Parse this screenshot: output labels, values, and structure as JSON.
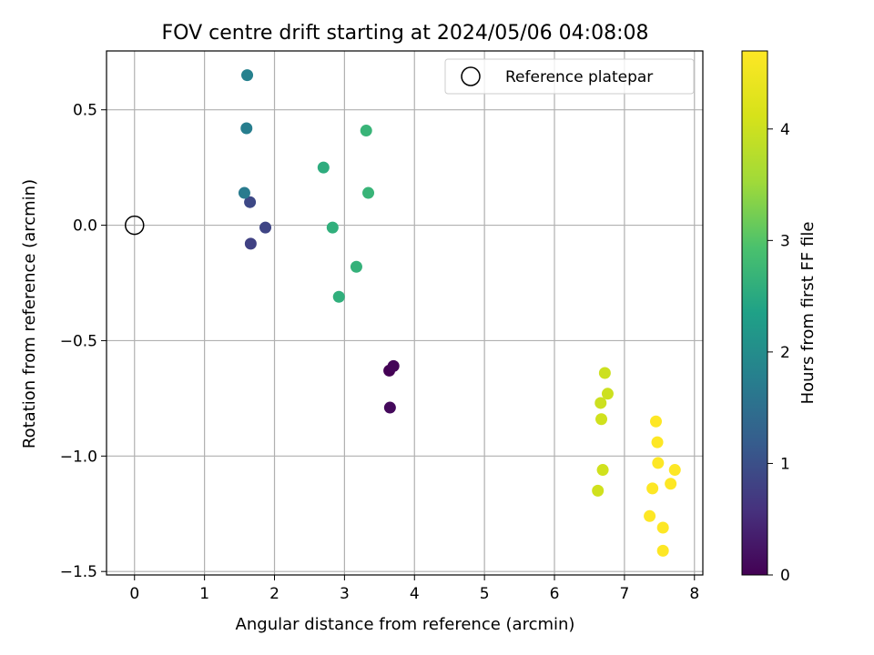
{
  "chart_data": {
    "type": "scatter",
    "title": "FOV centre drift starting at 2024/05/06 04:08:08",
    "xlabel": "Angular distance from reference (arcmin)",
    "ylabel": "Rotation from reference (arcmin)",
    "xlim": [
      -0.4,
      8.12
    ],
    "ylim": [
      -1.515,
      0.755
    ],
    "x_ticks": [
      0,
      1,
      2,
      3,
      4,
      5,
      6,
      7,
      8
    ],
    "x_tick_labels": [
      "0",
      "1",
      "2",
      "3",
      "4",
      "5",
      "6",
      "7",
      "8"
    ],
    "y_ticks": [
      0.5,
      0.0,
      -0.5,
      -1.0,
      -1.5
    ],
    "y_tick_labels": [
      "0.5",
      "0.0",
      "−0.5",
      "−1.0",
      "−1.5"
    ],
    "grid": true,
    "legend": {
      "placement": "top-right",
      "entries": [
        {
          "label": "Reference platepar",
          "marker": "open-circle"
        }
      ]
    },
    "reference_point": {
      "x": 0.0,
      "y": 0.0
    },
    "colorbar": {
      "label": "Hours from first FF file",
      "colormap": "viridis",
      "range": [
        0,
        4.7
      ],
      "ticks": [
        0,
        1,
        2,
        3,
        4
      ],
      "tick_labels": [
        "0",
        "1",
        "2",
        "3",
        "4"
      ]
    },
    "points": [
      {
        "x": 3.64,
        "y": -0.63,
        "hours": 0.0
      },
      {
        "x": 3.7,
        "y": -0.61,
        "hours": 0.05
      },
      {
        "x": 3.65,
        "y": -0.79,
        "hours": 0.1
      },
      {
        "x": 1.66,
        "y": -0.08,
        "hours": 0.8
      },
      {
        "x": 1.87,
        "y": -0.01,
        "hours": 0.85
      },
      {
        "x": 1.65,
        "y": 0.1,
        "hours": 0.9
      },
      {
        "x": 1.57,
        "y": 0.14,
        "hours": 1.7
      },
      {
        "x": 1.6,
        "y": 0.42,
        "hours": 1.75
      },
      {
        "x": 1.61,
        "y": 0.65,
        "hours": 1.8
      },
      {
        "x": 2.7,
        "y": 0.25,
        "hours": 2.55
      },
      {
        "x": 2.83,
        "y": -0.01,
        "hours": 2.6
      },
      {
        "x": 2.92,
        "y": -0.31,
        "hours": 2.6
      },
      {
        "x": 3.17,
        "y": -0.18,
        "hours": 2.65
      },
      {
        "x": 3.31,
        "y": 0.41,
        "hours": 2.7
      },
      {
        "x": 3.34,
        "y": 0.14,
        "hours": 2.7
      },
      {
        "x": 6.72,
        "y": -0.64,
        "hours": 4.0
      },
      {
        "x": 6.76,
        "y": -0.73,
        "hours": 4.0
      },
      {
        "x": 6.66,
        "y": -0.77,
        "hours": 4.0
      },
      {
        "x": 6.67,
        "y": -0.84,
        "hours": 4.05
      },
      {
        "x": 6.69,
        "y": -1.06,
        "hours": 4.05
      },
      {
        "x": 6.62,
        "y": -1.15,
        "hours": 4.05
      },
      {
        "x": 7.45,
        "y": -0.85,
        "hours": 4.7
      },
      {
        "x": 7.47,
        "y": -0.94,
        "hours": 4.7
      },
      {
        "x": 7.48,
        "y": -1.03,
        "hours": 4.7
      },
      {
        "x": 7.72,
        "y": -1.06,
        "hours": 4.7
      },
      {
        "x": 7.66,
        "y": -1.12,
        "hours": 4.7
      },
      {
        "x": 7.4,
        "y": -1.14,
        "hours": 4.7
      },
      {
        "x": 7.36,
        "y": -1.26,
        "hours": 4.7
      },
      {
        "x": 7.55,
        "y": -1.31,
        "hours": 4.7
      },
      {
        "x": 7.55,
        "y": -1.41,
        "hours": 4.7
      }
    ]
  }
}
